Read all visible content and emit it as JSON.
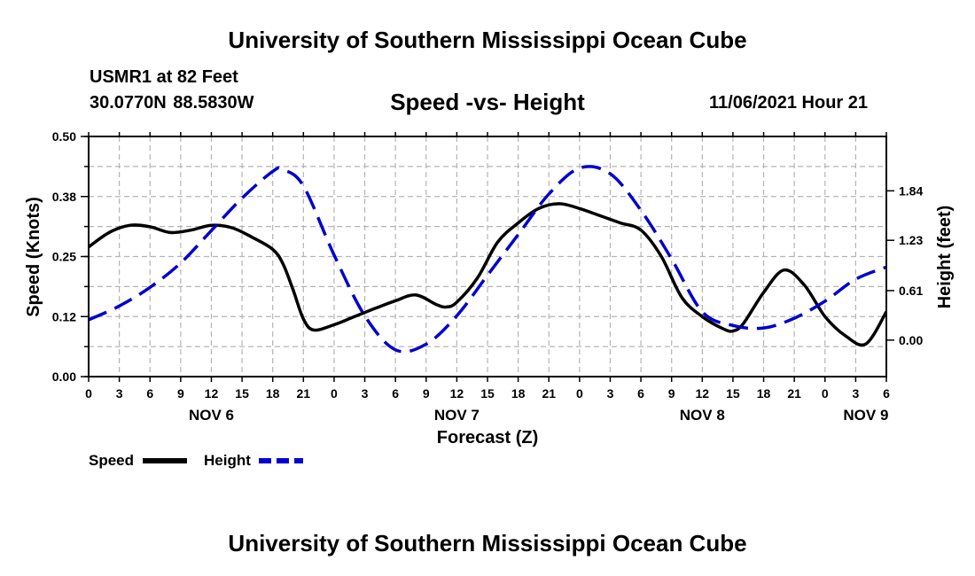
{
  "header": {
    "title_top": "University of Southern Mississippi Ocean Cube",
    "station": "USMR1 at 82 Feet",
    "coords": "30.0770N  88.5830W",
    "chart_title": "Speed -vs- Height",
    "datetime": "11/06/2021 Hour 21",
    "title_bottom": "University of Southern Mississippi Ocean Cube"
  },
  "colors": {
    "speed": "#000000",
    "height": "#0000cc",
    "grid": "#b4b4b4"
  },
  "chart_data": {
    "type": "line",
    "title": "Speed -vs- Height",
    "xlabel": "Forecast (Z)",
    "x_tick_labels": [
      "0",
      "3",
      "6",
      "9",
      "12",
      "15",
      "18",
      "21",
      "0",
      "3",
      "6",
      "9",
      "12",
      "15",
      "18",
      "21",
      "0",
      "3",
      "6",
      "9",
      "12",
      "15",
      "18",
      "21",
      "0",
      "3",
      "6"
    ],
    "x_range_hours": [
      0,
      78
    ],
    "date_labels": [
      {
        "label": "NOV 6",
        "hour": 12
      },
      {
        "label": "NOV 7",
        "hour": 36
      },
      {
        "label": "NOV 8",
        "hour": 60
      },
      {
        "label": "NOV 9",
        "hour": 76
      }
    ],
    "y_left": {
      "label": "Speed (Knots)",
      "ylim": [
        0,
        0.5
      ],
      "ticks": [
        0.0,
        0.125,
        0.25,
        0.375,
        0.5
      ],
      "tick_labels": [
        "0.00",
        "0.12",
        "0.25",
        "0.38",
        "0.50"
      ]
    },
    "y_right": {
      "label": "Height (feet)",
      "ylim": [
        -0.45,
        2.51
      ],
      "ticks": [
        0.0,
        0.61,
        1.23,
        1.84
      ],
      "tick_labels": [
        "0.00",
        "0.61",
        "1.23",
        "1.84"
      ]
    },
    "series": [
      {
        "name": "Speed",
        "axis": "left",
        "style": "solid",
        "x": [
          0,
          2,
          4,
          6,
          8,
          10,
          12,
          14,
          16,
          18,
          19,
          20,
          21,
          22,
          24,
          26,
          28,
          30,
          32,
          34,
          35,
          36,
          38,
          40,
          42,
          44,
          46,
          48,
          50,
          52,
          54,
          56,
          58,
          60,
          62,
          63,
          64,
          66,
          68,
          70,
          72,
          74,
          76,
          78
        ],
        "values": [
          0.27,
          0.3,
          0.315,
          0.312,
          0.3,
          0.305,
          0.315,
          0.31,
          0.29,
          0.265,
          0.235,
          0.18,
          0.12,
          0.097,
          0.108,
          0.125,
          0.142,
          0.158,
          0.17,
          0.15,
          0.145,
          0.155,
          0.205,
          0.28,
          0.32,
          0.35,
          0.36,
          0.35,
          0.335,
          0.32,
          0.305,
          0.25,
          0.165,
          0.125,
          0.1,
          0.095,
          0.11,
          0.175,
          0.222,
          0.19,
          0.125,
          0.085,
          0.068,
          0.135
        ]
      },
      {
        "name": "Height",
        "axis": "right",
        "style": "dashed",
        "x": [
          0,
          3,
          6,
          9,
          12,
          15,
          18,
          19,
          21,
          24,
          27,
          30,
          33,
          36,
          39,
          42,
          45,
          48,
          51,
          54,
          57,
          60,
          63,
          66,
          69,
          72,
          75,
          78
        ],
        "values": [
          0.25,
          0.42,
          0.65,
          0.95,
          1.35,
          1.75,
          2.08,
          2.1,
          1.9,
          1.05,
          0.3,
          -0.12,
          -0.05,
          0.3,
          0.8,
          1.3,
          1.8,
          2.12,
          2.05,
          1.6,
          1.0,
          0.35,
          0.18,
          0.15,
          0.27,
          0.48,
          0.75,
          0.9
        ]
      }
    ],
    "legend": [
      {
        "label": "Speed",
        "style": "solid"
      },
      {
        "label": "Height",
        "style": "dashed"
      }
    ],
    "legend_position": "bottom-left",
    "grid": true
  }
}
